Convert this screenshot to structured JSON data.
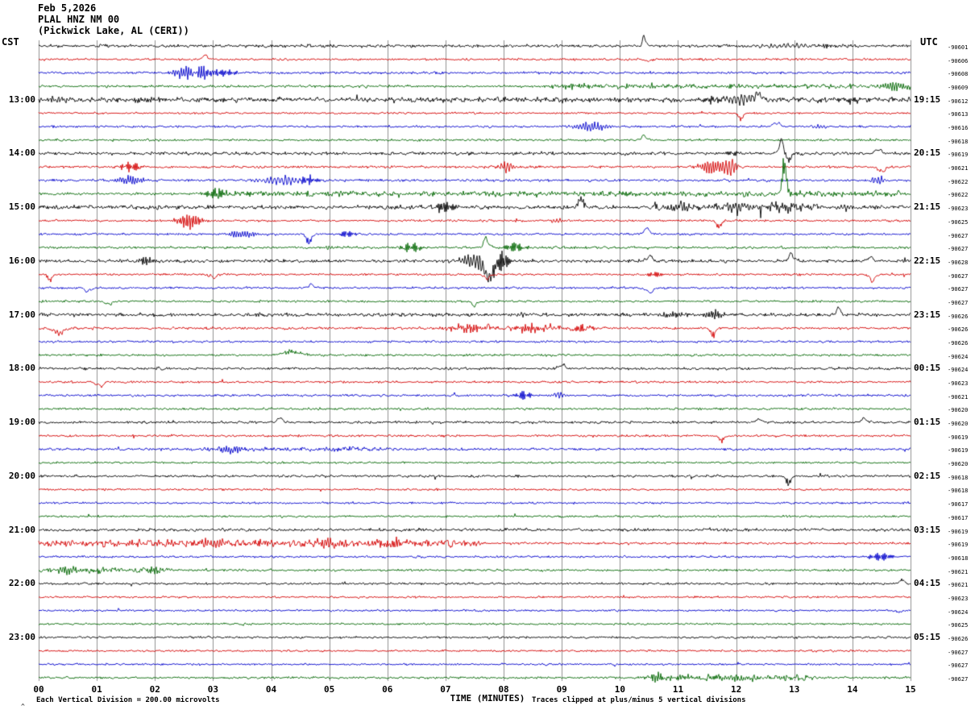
{
  "header": {
    "date": "Feb 5,2026",
    "station": "PLAL HNZ NM 00",
    "location": "(Pickwick Lake, AL (CERI))"
  },
  "axis": {
    "left_tz": "CST",
    "right_tz": "UTC"
  },
  "footer": {
    "left": "Each Vertical Division =  200.00 microvolts",
    "right": "Traces clipped at plus/minus 5 vertical divisions",
    "corner_mark": "^"
  },
  "chart_data": {
    "type": "seismogram",
    "station": "PLAL HNZ NM 00",
    "date": "Feb 5,2026",
    "location": "Pickwick Lake, AL (CERI)",
    "minutes_per_line": 15,
    "microvolts_per_division": 200.0,
    "clip_divisions": 5,
    "left_timezone": "CST",
    "right_timezone": "UTC",
    "palette": [
      "#000000",
      "#d40000",
      "#0000cc",
      "#006600"
    ],
    "grid_color": "#909090",
    "x_axis": {
      "label": "TIME (MINUTES)",
      "range_minutes": [
        0,
        15
      ],
      "ticks": [
        "00",
        "01",
        "02",
        "03",
        "04",
        "05",
        "06",
        "07",
        "08",
        "09",
        "10",
        "11",
        "12",
        "13",
        "14",
        "15"
      ]
    },
    "rows": [
      {
        "noise": 1.2,
        "ev": [
          [
            10.42,
            0.06,
            14,
            1
          ],
          [
            12.9,
            0.6,
            2.5,
            0
          ],
          [
            13.5,
            0.3,
            2,
            0
          ]
        ]
      },
      {
        "noise": 0.9,
        "ev": [
          [
            2.87,
            0.12,
            5,
            1
          ],
          [
            10.5,
            0.1,
            2.5,
            -1
          ]
        ]
      },
      {
        "noise": 1.0,
        "ev": [
          [
            2.55,
            0.35,
            8,
            0
          ],
          [
            2.85,
            0.3,
            9,
            0
          ],
          [
            3.2,
            0.25,
            4,
            0
          ]
        ]
      },
      {
        "noise": 1.0,
        "seg": [
          [
            8.8,
            15,
            1.8
          ]
        ],
        "ev": [
          [
            9.2,
            0.3,
            3.5,
            0
          ],
          [
            14.75,
            0.35,
            6,
            0
          ],
          [
            5.6,
            0.1,
            2,
            0
          ]
        ]
      },
      {
        "cst": "13:00",
        "utc": "19:15",
        "noise": 2.0,
        "ev": [
          [
            0.35,
            0.4,
            3.5,
            0
          ],
          [
            1.8,
            0.3,
            3,
            0
          ],
          [
            11.55,
            0.25,
            4,
            0
          ],
          [
            12.1,
            0.5,
            6,
            0
          ],
          [
            12.35,
            0.12,
            9,
            1
          ],
          [
            14.0,
            0.2,
            3,
            0
          ]
        ]
      },
      {
        "noise": 0.8,
        "ev": [
          [
            12.08,
            0.08,
            8,
            -1
          ]
        ]
      },
      {
        "noise": 0.9,
        "ev": [
          [
            9.5,
            0.4,
            6,
            0
          ],
          [
            12.7,
            0.1,
            7,
            1
          ],
          [
            13.4,
            0.15,
            3,
            0
          ]
        ]
      },
      {
        "noise": 0.9,
        "ev": [
          [
            10.42,
            0.1,
            6,
            1
          ]
        ]
      },
      {
        "cst": "14:00",
        "utc": "20:15",
        "noise": 1.3,
        "ev": [
          [
            11.9,
            0.2,
            3,
            0
          ],
          [
            12.78,
            0.1,
            16,
            1
          ],
          [
            12.9,
            0.08,
            12,
            -1
          ],
          [
            14.45,
            0.1,
            6,
            1
          ]
        ]
      },
      {
        "noise": 1.0,
        "ev": [
          [
            1.6,
            0.25,
            6,
            0
          ],
          [
            8.05,
            0.15,
            8,
            0
          ],
          [
            11.6,
            0.35,
            9,
            0
          ],
          [
            11.9,
            0.15,
            12,
            0
          ],
          [
            14.5,
            0.1,
            8,
            -1
          ]
        ]
      },
      {
        "noise": 1.0,
        "ev": [
          [
            1.55,
            0.35,
            6,
            0
          ],
          [
            4.2,
            0.5,
            6,
            0
          ],
          [
            4.65,
            0.25,
            6,
            0
          ],
          [
            14.45,
            0.15,
            7,
            0
          ]
        ]
      },
      {
        "noise": 1.0,
        "seg": [
          [
            3.0,
            15,
            2.2
          ]
        ],
        "ev": [
          [
            3.05,
            0.25,
            8,
            0
          ],
          [
            12.83,
            0.07,
            45,
            1
          ]
        ]
      },
      {
        "cst": "15:00",
        "utc": "21:15",
        "noise": 1.6,
        "seg": [
          [
            10.6,
            13.4,
            2.0
          ]
        ],
        "ev": [
          [
            7.0,
            0.25,
            8,
            0
          ],
          [
            9.33,
            0.08,
            13,
            1
          ],
          [
            11.1,
            0.35,
            5,
            0
          ],
          [
            12.0,
            0.4,
            5,
            0
          ],
          [
            12.8,
            0.3,
            6,
            0
          ],
          [
            13.9,
            0.15,
            4,
            0
          ]
        ]
      },
      {
        "noise": 0.9,
        "ev": [
          [
            2.6,
            0.3,
            10,
            0
          ],
          [
            8.9,
            0.15,
            3,
            0
          ],
          [
            11.7,
            0.08,
            10,
            -1
          ]
        ]
      },
      {
        "noise": 0.9,
        "ev": [
          [
            3.5,
            0.35,
            5,
            0
          ],
          [
            4.65,
            0.08,
            13,
            -1
          ],
          [
            5.3,
            0.2,
            4,
            0
          ],
          [
            10.45,
            0.12,
            7,
            1
          ]
        ]
      },
      {
        "noise": 1.0,
        "ev": [
          [
            5.0,
            0.15,
            3,
            0
          ],
          [
            6.4,
            0.25,
            6,
            0
          ],
          [
            7.7,
            0.1,
            12,
            1
          ],
          [
            8.2,
            0.25,
            7,
            0
          ]
        ]
      },
      {
        "cst": "16:00",
        "utc": "22:15",
        "noise": 1.3,
        "ev": [
          [
            1.85,
            0.18,
            6,
            0
          ],
          [
            7.55,
            0.4,
            10,
            0
          ],
          [
            7.75,
            0.15,
            26,
            -1
          ],
          [
            7.95,
            0.2,
            14,
            0
          ],
          [
            10.5,
            0.1,
            7,
            1
          ],
          [
            12.95,
            0.1,
            9,
            1
          ],
          [
            14.3,
            0.1,
            6,
            1
          ]
        ]
      },
      {
        "noise": 0.9,
        "ev": [
          [
            0.2,
            0.08,
            8,
            -1
          ],
          [
            3.0,
            0.1,
            5,
            -1
          ],
          [
            7.7,
            0.1,
            6,
            -1
          ],
          [
            10.6,
            0.2,
            3,
            0
          ],
          [
            14.35,
            0.1,
            9,
            -1
          ]
        ]
      },
      {
        "noise": 0.9,
        "ev": [
          [
            0.85,
            0.1,
            6,
            -1
          ],
          [
            4.7,
            0.1,
            5,
            1
          ],
          [
            10.5,
            0.12,
            7,
            -1
          ]
        ]
      },
      {
        "noise": 0.9,
        "ev": [
          [
            1.2,
            0.1,
            5,
            -1
          ],
          [
            7.5,
            0.1,
            6,
            -1
          ]
        ]
      },
      {
        "cst": "17:00",
        "utc": "23:15",
        "noise": 1.4,
        "ev": [
          [
            10.9,
            0.3,
            4,
            0
          ],
          [
            11.6,
            0.3,
            5,
            0
          ],
          [
            13.75,
            0.1,
            8,
            1
          ],
          [
            8.3,
            0.15,
            3,
            0
          ]
        ]
      },
      {
        "noise": 1.0,
        "seg": [
          [
            6.9,
            9.6,
            2.3
          ]
        ],
        "ev": [
          [
            0.35,
            0.15,
            8,
            -1
          ],
          [
            7.4,
            0.3,
            5,
            0
          ],
          [
            8.4,
            0.3,
            5,
            0
          ],
          [
            9.3,
            0.2,
            4,
            0
          ],
          [
            11.6,
            0.08,
            11,
            -1
          ]
        ]
      },
      {
        "noise": 0.9
      },
      {
        "noise": 0.9,
        "ev": [
          [
            4.35,
            0.3,
            5,
            1
          ]
        ]
      },
      {
        "cst": "18:00",
        "utc": "00:15",
        "noise": 1.0,
        "ev": [
          [
            9.0,
            0.1,
            6,
            1
          ],
          [
            2.1,
            0.1,
            2.5,
            0
          ]
        ]
      },
      {
        "noise": 0.9,
        "ev": [
          [
            1.05,
            0.1,
            7,
            -1
          ]
        ]
      },
      {
        "noise": 0.9,
        "ev": [
          [
            8.35,
            0.2,
            6,
            0
          ],
          [
            8.95,
            0.15,
            6,
            0
          ]
        ]
      },
      {
        "noise": 0.9
      },
      {
        "cst": "19:00",
        "utc": "01:15",
        "noise": 1.0,
        "ev": [
          [
            4.15,
            0.12,
            5,
            1
          ],
          [
            12.4,
            0.12,
            4,
            1
          ],
          [
            14.2,
            0.1,
            5,
            1
          ]
        ]
      },
      {
        "noise": 0.9,
        "ev": [
          [
            11.75,
            0.08,
            8,
            -1
          ]
        ]
      },
      {
        "noise": 1.0,
        "seg": [
          [
            2.8,
            6.2,
            1.8
          ]
        ],
        "ev": [
          [
            3.3,
            0.35,
            5,
            0
          ]
        ]
      },
      {
        "noise": 0.8
      },
      {
        "cst": "20:00",
        "utc": "02:15",
        "noise": 1.0,
        "ev": [
          [
            12.9,
            0.08,
            12,
            -1
          ]
        ]
      },
      {
        "noise": 0.8
      },
      {
        "noise": 0.8
      },
      {
        "noise": 0.8
      },
      {
        "cst": "21:00",
        "utc": "03:15",
        "noise": 1.2
      },
      {
        "noise": 1.0,
        "seg": [
          [
            0,
            7.6,
            2.8
          ]
        ],
        "ev": [
          [
            3.0,
            0.4,
            5,
            0
          ],
          [
            5.0,
            0.35,
            5,
            0
          ],
          [
            6.1,
            0.3,
            4,
            0
          ]
        ]
      },
      {
        "noise": 0.9,
        "ev": [
          [
            14.5,
            0.25,
            6,
            0
          ]
        ]
      },
      {
        "noise": 0.9,
        "seg": [
          [
            0,
            2.3,
            2.6
          ]
        ],
        "ev": [
          [
            0.5,
            0.35,
            5,
            0
          ],
          [
            1.9,
            0.3,
            4,
            0
          ]
        ]
      },
      {
        "cst": "22:00",
        "utc": "04:15",
        "noise": 0.9,
        "ev": [
          [
            14.85,
            0.08,
            6,
            1
          ]
        ]
      },
      {
        "noise": 0.8
      },
      {
        "noise": 0.8,
        "ev": [
          [
            14.8,
            0.08,
            3,
            -1
          ]
        ]
      },
      {
        "noise": 0.8
      },
      {
        "cst": "23:00",
        "utc": "05:15",
        "noise": 0.9
      },
      {
        "noise": 0.8
      },
      {
        "noise": 0.8
      },
      {
        "noise": 0.9,
        "seg": [
          [
            10.4,
            13.5,
            2.6
          ]
        ],
        "ev": [
          [
            10.7,
            0.3,
            4,
            0
          ],
          [
            12.0,
            0.35,
            4,
            0
          ]
        ]
      }
    ],
    "right_values": [
      "-90601",
      "-90606",
      "-90608",
      "-90609",
      "-90612",
      "-90613",
      "-90616",
      "-90618",
      "-90619",
      "-90621",
      "-90622",
      "-90622",
      "-90623",
      "-90625",
      "-90627",
      "-90627",
      "-90628",
      "-90627",
      "-90627",
      "-90627",
      "-90626",
      "-90626",
      "-90626",
      "-90624",
      "-90624",
      "-90623",
      "-90621",
      "-90620",
      "-90620",
      "-90619",
      "-90619",
      "-90620",
      "-90618",
      "-90618",
      "-90617",
      "-90617",
      "-90619",
      "-90619",
      "-90618",
      "-90621",
      "-90621",
      "-90623",
      "-90624",
      "-90625",
      "-90626",
      "-90627",
      "-90627",
      "-90627"
    ]
  }
}
